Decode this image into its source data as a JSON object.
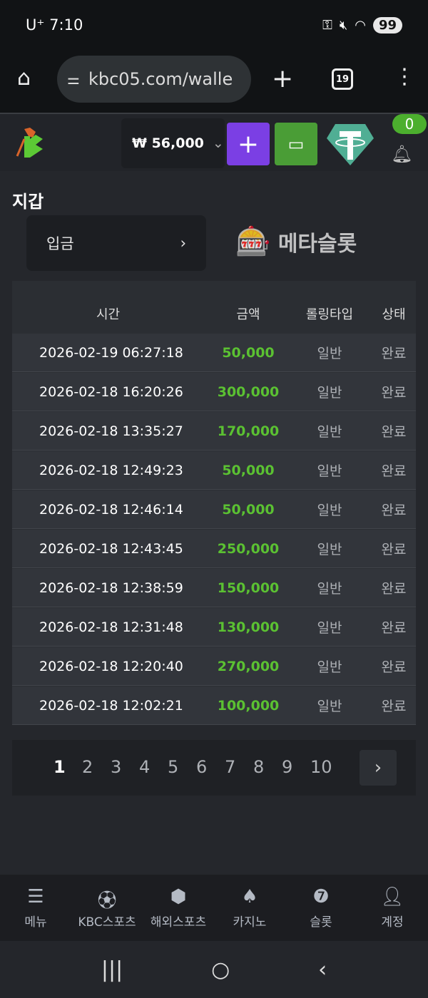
{
  "status_bar": {
    "carrier": "U⁺",
    "time": "7:10",
    "battery": "99"
  },
  "browser": {
    "url": "kbc05.com/walle",
    "tab_count": "19"
  },
  "header": {
    "balance": "₩ 56,000",
    "notification_count": "0",
    "colors": {
      "deposit_button": "#7b3fe4",
      "withdraw_button": "#4a9d36",
      "tether": "#50ae94"
    }
  },
  "page": {
    "title": "지갑",
    "deposit_label": "입금"
  },
  "table": {
    "columns": [
      "시간",
      "금액",
      "롤링타입",
      "상태"
    ],
    "rows": [
      {
        "time": "2026-02-19 06:27:18",
        "amount": "50,000",
        "type": "일반",
        "status": "완료"
      },
      {
        "time": "2026-02-18 16:20:26",
        "amount": "300,000",
        "type": "일반",
        "status": "완료"
      },
      {
        "time": "2026-02-18 13:35:27",
        "amount": "170,000",
        "type": "일반",
        "status": "완료"
      },
      {
        "time": "2026-02-18 12:49:23",
        "amount": "50,000",
        "type": "일반",
        "status": "완료"
      },
      {
        "time": "2026-02-18 12:46:14",
        "amount": "50,000",
        "type": "일반",
        "status": "완료"
      },
      {
        "time": "2026-02-18 12:43:45",
        "amount": "250,000",
        "type": "일반",
        "status": "완료"
      },
      {
        "time": "2026-02-18 12:38:59",
        "amount": "150,000",
        "type": "일반",
        "status": "완료"
      },
      {
        "time": "2026-02-18 12:31:48",
        "amount": "130,000",
        "type": "일반",
        "status": "완료"
      },
      {
        "time": "2026-02-18 12:20:40",
        "amount": "270,000",
        "type": "일반",
        "status": "완료"
      },
      {
        "time": "2026-02-18 12:02:21",
        "amount": "100,000",
        "type": "일반",
        "status": "완료"
      }
    ]
  },
  "pagination": {
    "pages": [
      "1",
      "2",
      "3",
      "4",
      "5",
      "6",
      "7",
      "8",
      "9",
      "10"
    ],
    "current": "1"
  },
  "watermark": {
    "text": "메타슬롯"
  },
  "bottom_nav": [
    {
      "label": "메뉴",
      "icon": "menu-search-icon"
    },
    {
      "label": "KBC스포츠",
      "icon": "soccer-ball-icon"
    },
    {
      "label": "해외스포츠",
      "icon": "dice-icon"
    },
    {
      "label": "카지노",
      "icon": "cards-icon"
    },
    {
      "label": "슬롯",
      "icon": "slot-7-icon"
    },
    {
      "label": "계정",
      "icon": "user-money-icon"
    }
  ]
}
